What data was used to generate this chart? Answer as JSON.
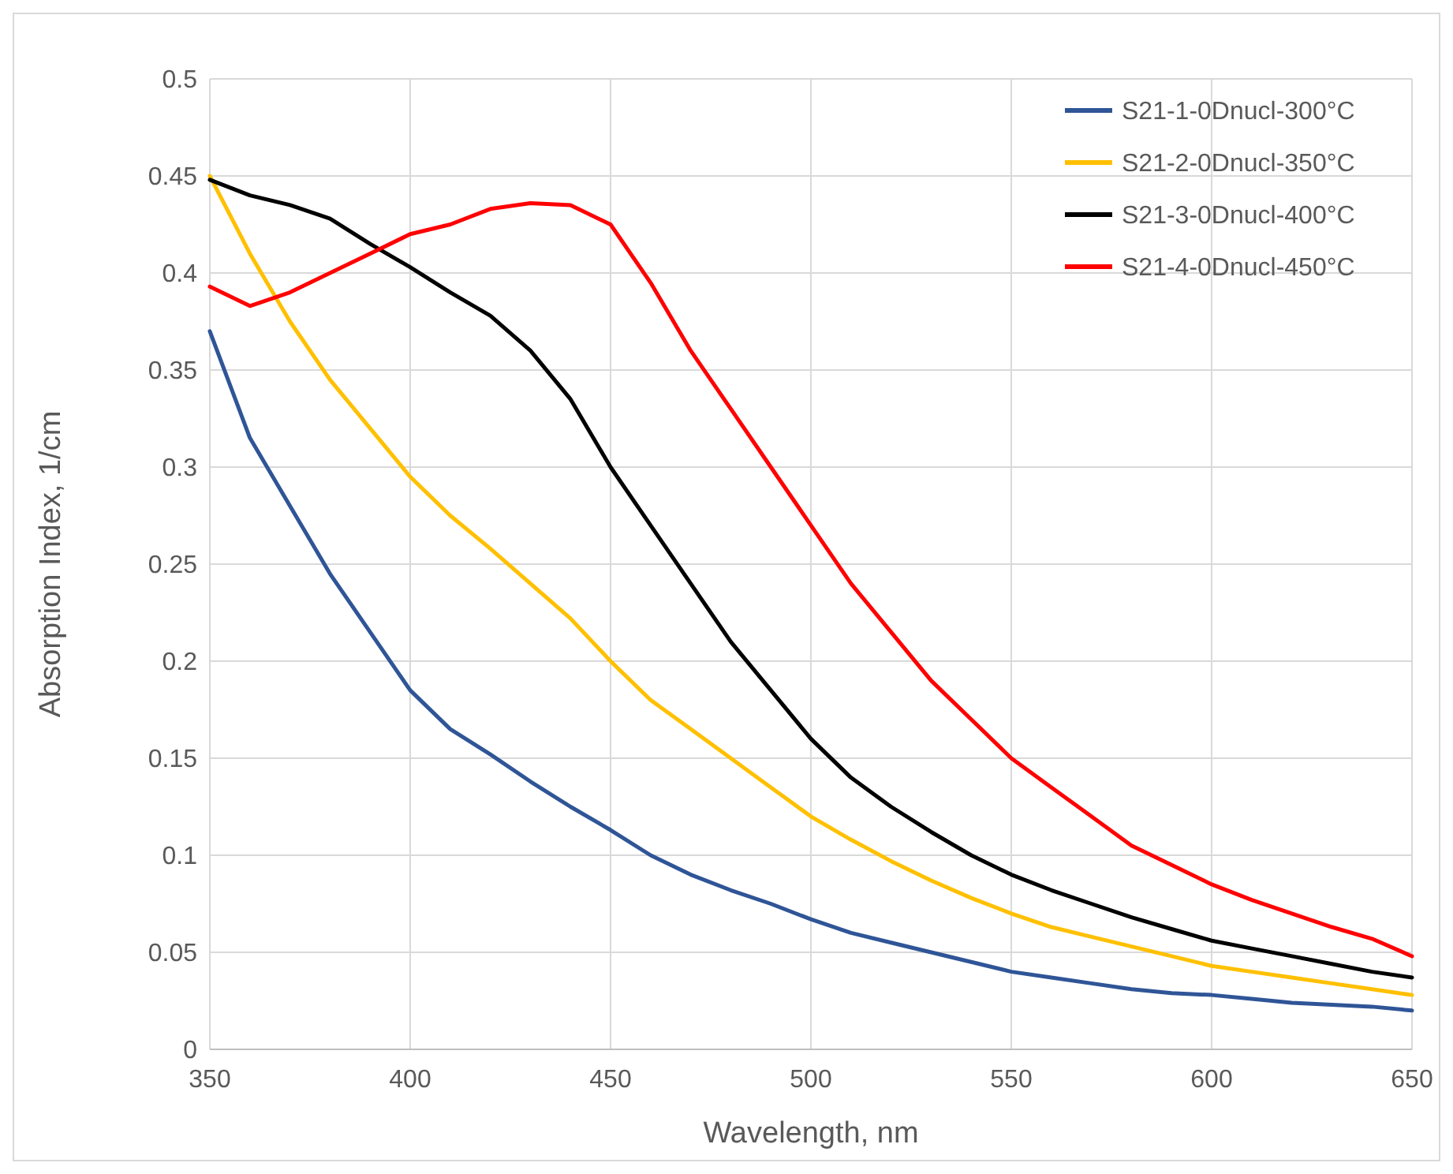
{
  "chart_data": {
    "type": "line",
    "xlabel": "Wavelength, nm",
    "ylabel": "Absorption Index, 1/cm",
    "x": [
      350,
      360,
      370,
      380,
      390,
      400,
      410,
      420,
      430,
      440,
      450,
      460,
      470,
      480,
      490,
      500,
      510,
      520,
      530,
      540,
      550,
      560,
      570,
      580,
      590,
      600,
      610,
      620,
      630,
      640,
      650
    ],
    "series": [
      {
        "name": "S21-1-0Dnucl-300°C",
        "color": "#2f5597",
        "values": [
          0.37,
          0.315,
          0.28,
          0.245,
          0.215,
          0.185,
          0.165,
          0.152,
          0.138,
          0.125,
          0.113,
          0.1,
          0.09,
          0.082,
          0.075,
          0.067,
          0.06,
          0.055,
          0.05,
          0.045,
          0.04,
          0.037,
          0.034,
          0.031,
          0.029,
          0.028,
          0.026,
          0.024,
          0.023,
          0.022,
          0.02
        ]
      },
      {
        "name": "S21-2-0Dnucl-350°C",
        "color": "#ffc000",
        "values": [
          0.45,
          0.41,
          0.375,
          0.345,
          0.32,
          0.295,
          0.275,
          0.258,
          0.24,
          0.222,
          0.2,
          0.18,
          0.165,
          0.15,
          0.135,
          0.12,
          0.108,
          0.097,
          0.087,
          0.078,
          0.07,
          0.063,
          0.058,
          0.053,
          0.048,
          0.043,
          0.04,
          0.037,
          0.034,
          0.031,
          0.028
        ]
      },
      {
        "name": "S21-3-0Dnucl-400°C",
        "color": "#000000",
        "values": [
          0.448,
          0.44,
          0.435,
          0.428,
          0.415,
          0.403,
          0.39,
          0.378,
          0.36,
          0.335,
          0.3,
          0.27,
          0.24,
          0.21,
          0.185,
          0.16,
          0.14,
          0.125,
          0.112,
          0.1,
          0.09,
          0.082,
          0.075,
          0.068,
          0.062,
          0.056,
          0.052,
          0.048,
          0.044,
          0.04,
          0.037
        ]
      },
      {
        "name": "S21-4-0Dnucl-450°C",
        "color": "#ff0000",
        "values": [
          0.393,
          0.383,
          0.39,
          0.4,
          0.41,
          0.42,
          0.425,
          0.433,
          0.436,
          0.435,
          0.425,
          0.395,
          0.36,
          0.33,
          0.3,
          0.27,
          0.24,
          0.215,
          0.19,
          0.17,
          0.15,
          0.135,
          0.12,
          0.105,
          0.095,
          0.085,
          0.077,
          0.07,
          0.063,
          0.057,
          0.048
        ]
      }
    ],
    "xlim": [
      350,
      650
    ],
    "xticks": [
      350,
      400,
      450,
      500,
      550,
      600,
      650
    ],
    "ylim": [
      0,
      0.5
    ],
    "yticks": [
      0,
      0.05,
      0.1,
      0.15,
      0.2,
      0.25,
      0.3,
      0.35,
      0.4,
      0.45,
      0.5
    ],
    "grid": true,
    "legend": "top right",
    "line_style": "solid",
    "marker": "none"
  }
}
